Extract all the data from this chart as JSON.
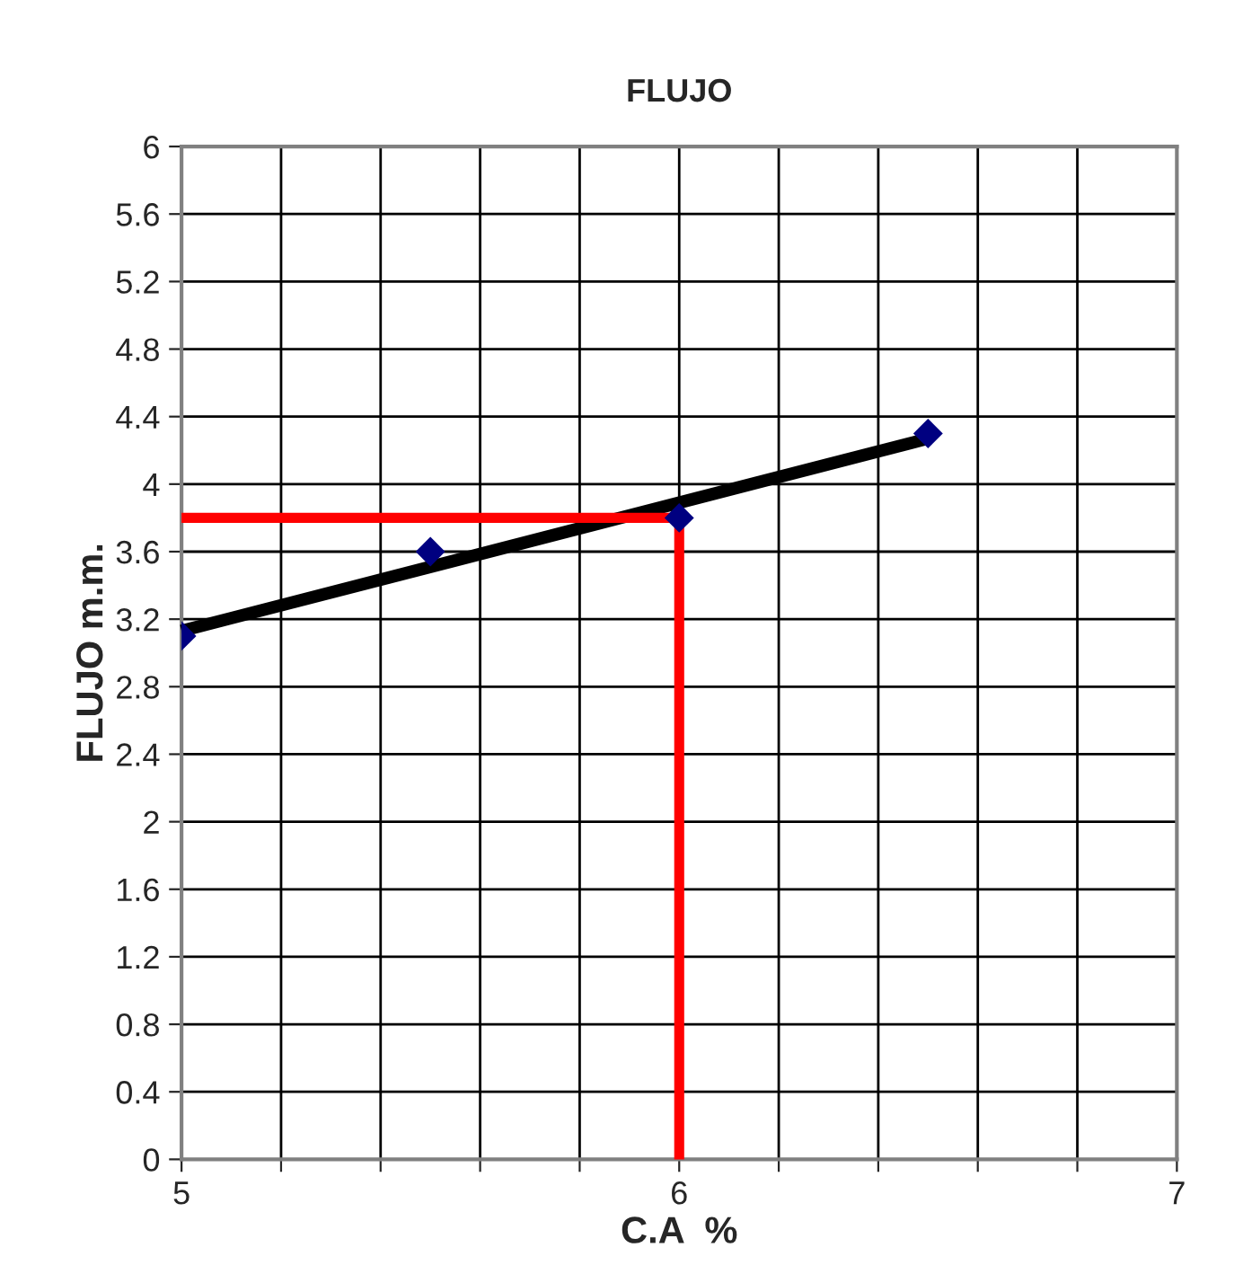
{
  "chart_data": {
    "type": "scatter",
    "title": "FLUJO",
    "xlabel": "C.A  %",
    "ylabel": "FLUJO m.m.",
    "x": [
      5,
      5.5,
      6,
      6.5
    ],
    "series": [
      {
        "color": "#000080",
        "marker": "diamond",
        "values": [
          3.1,
          3.6,
          3.8,
          4.3
        ]
      },
      {
        "type": "line",
        "color": "#000000",
        "x": [
          5,
          6.5
        ],
        "values": [
          3.13,
          4.27
        ],
        "marker": "none"
      },
      {
        "type": "line",
        "color": "#ff0000",
        "x": [
          5,
          6,
          6
        ],
        "values": [
          3.8,
          3.8,
          0
        ],
        "marker": "none"
      }
    ],
    "xlim": [
      5,
      7
    ],
    "xticks": [
      5,
      {
        "value": 5.2,
        "label": null
      },
      {
        "value": 5.4,
        "label": null
      },
      {
        "value": 5.6,
        "label": null
      },
      {
        "value": 5.8,
        "label": null
      },
      6,
      {
        "value": 6.2,
        "label": null
      },
      {
        "value": 6.4,
        "label": null
      },
      {
        "value": 6.6,
        "label": null
      },
      {
        "value": 6.8,
        "label": null
      },
      7
    ],
    "ylim": [
      0,
      6
    ],
    "yticks": [
      0,
      0.4,
      0.8,
      1.2,
      1.6,
      2,
      2.4,
      2.8,
      3.2,
      3.6,
      4,
      4.4,
      4.8,
      5.2,
      5.6,
      6
    ],
    "grid": true,
    "legend": false
  }
}
